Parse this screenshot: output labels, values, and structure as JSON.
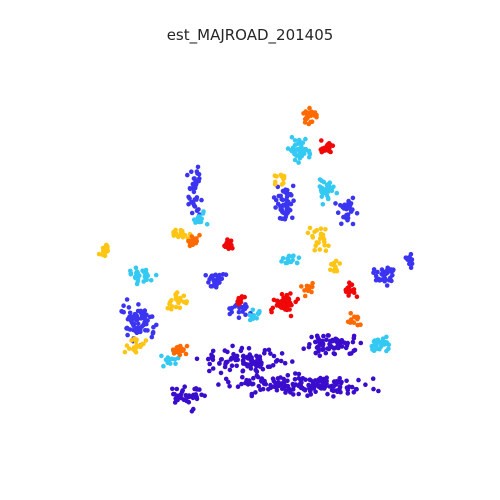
{
  "title": "est_MAJROAD_201405",
  "palette": {
    "dark_blue": "#3a0ccc",
    "blue": "#3b34f0",
    "cyan": "#33c9f2",
    "yellow": "#ffc514",
    "orange": "#ff6a00",
    "red": "#f00808"
  }
}
